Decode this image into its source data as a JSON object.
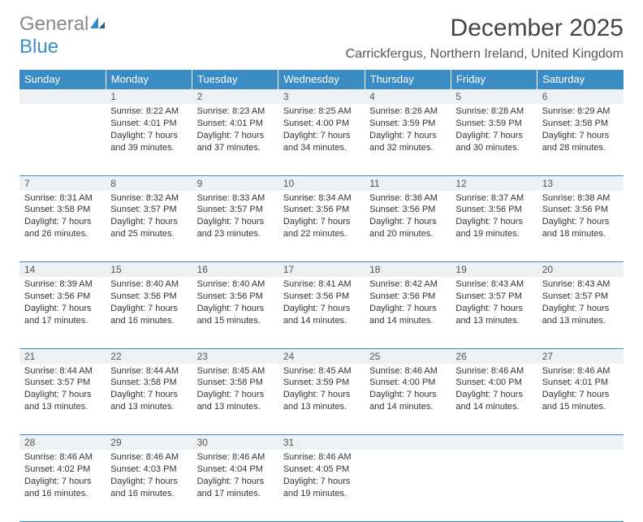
{
  "logo": {
    "word1": "General",
    "word2": "Blue"
  },
  "title": "December 2025",
  "location": "Carrickfergus, Northern Ireland, United Kingdom",
  "colors": {
    "accent": "#3b8bc4",
    "headerText": "#ffffff",
    "dayBg": "#eef1f3",
    "text": "#333333"
  },
  "daysOfWeek": [
    "Sunday",
    "Monday",
    "Tuesday",
    "Wednesday",
    "Thursday",
    "Friday",
    "Saturday"
  ],
  "weeks": [
    {
      "nums": [
        "",
        "1",
        "2",
        "3",
        "4",
        "5",
        "6"
      ],
      "details": [
        "",
        "Sunrise: 8:22 AM\nSunset: 4:01 PM\nDaylight: 7 hours and 39 minutes.",
        "Sunrise: 8:23 AM\nSunset: 4:01 PM\nDaylight: 7 hours and 37 minutes.",
        "Sunrise: 8:25 AM\nSunset: 4:00 PM\nDaylight: 7 hours and 34 minutes.",
        "Sunrise: 8:26 AM\nSunset: 3:59 PM\nDaylight: 7 hours and 32 minutes.",
        "Sunrise: 8:28 AM\nSunset: 3:59 PM\nDaylight: 7 hours and 30 minutes.",
        "Sunrise: 8:29 AM\nSunset: 3:58 PM\nDaylight: 7 hours and 28 minutes."
      ]
    },
    {
      "nums": [
        "7",
        "8",
        "9",
        "10",
        "11",
        "12",
        "13"
      ],
      "details": [
        "Sunrise: 8:31 AM\nSunset: 3:58 PM\nDaylight: 7 hours and 26 minutes.",
        "Sunrise: 8:32 AM\nSunset: 3:57 PM\nDaylight: 7 hours and 25 minutes.",
        "Sunrise: 8:33 AM\nSunset: 3:57 PM\nDaylight: 7 hours and 23 minutes.",
        "Sunrise: 8:34 AM\nSunset: 3:56 PM\nDaylight: 7 hours and 22 minutes.",
        "Sunrise: 8:36 AM\nSunset: 3:56 PM\nDaylight: 7 hours and 20 minutes.",
        "Sunrise: 8:37 AM\nSunset: 3:56 PM\nDaylight: 7 hours and 19 minutes.",
        "Sunrise: 8:38 AM\nSunset: 3:56 PM\nDaylight: 7 hours and 18 minutes."
      ]
    },
    {
      "nums": [
        "14",
        "15",
        "16",
        "17",
        "18",
        "19",
        "20"
      ],
      "details": [
        "Sunrise: 8:39 AM\nSunset: 3:56 PM\nDaylight: 7 hours and 17 minutes.",
        "Sunrise: 8:40 AM\nSunset: 3:56 PM\nDaylight: 7 hours and 16 minutes.",
        "Sunrise: 8:40 AM\nSunset: 3:56 PM\nDaylight: 7 hours and 15 minutes.",
        "Sunrise: 8:41 AM\nSunset: 3:56 PM\nDaylight: 7 hours and 14 minutes.",
        "Sunrise: 8:42 AM\nSunset: 3:56 PM\nDaylight: 7 hours and 14 minutes.",
        "Sunrise: 8:43 AM\nSunset: 3:57 PM\nDaylight: 7 hours and 13 minutes.",
        "Sunrise: 8:43 AM\nSunset: 3:57 PM\nDaylight: 7 hours and 13 minutes."
      ]
    },
    {
      "nums": [
        "21",
        "22",
        "23",
        "24",
        "25",
        "26",
        "27"
      ],
      "details": [
        "Sunrise: 8:44 AM\nSunset: 3:57 PM\nDaylight: 7 hours and 13 minutes.",
        "Sunrise: 8:44 AM\nSunset: 3:58 PM\nDaylight: 7 hours and 13 minutes.",
        "Sunrise: 8:45 AM\nSunset: 3:58 PM\nDaylight: 7 hours and 13 minutes.",
        "Sunrise: 8:45 AM\nSunset: 3:59 PM\nDaylight: 7 hours and 13 minutes.",
        "Sunrise: 8:46 AM\nSunset: 4:00 PM\nDaylight: 7 hours and 14 minutes.",
        "Sunrise: 8:46 AM\nSunset: 4:00 PM\nDaylight: 7 hours and 14 minutes.",
        "Sunrise: 8:46 AM\nSunset: 4:01 PM\nDaylight: 7 hours and 15 minutes."
      ]
    },
    {
      "nums": [
        "28",
        "29",
        "30",
        "31",
        "",
        "",
        ""
      ],
      "details": [
        "Sunrise: 8:46 AM\nSunset: 4:02 PM\nDaylight: 7 hours and 16 minutes.",
        "Sunrise: 8:46 AM\nSunset: 4:03 PM\nDaylight: 7 hours and 16 minutes.",
        "Sunrise: 8:46 AM\nSunset: 4:04 PM\nDaylight: 7 hours and 17 minutes.",
        "Sunrise: 8:46 AM\nSunset: 4:05 PM\nDaylight: 7 hours and 19 minutes.",
        "",
        "",
        ""
      ]
    }
  ]
}
